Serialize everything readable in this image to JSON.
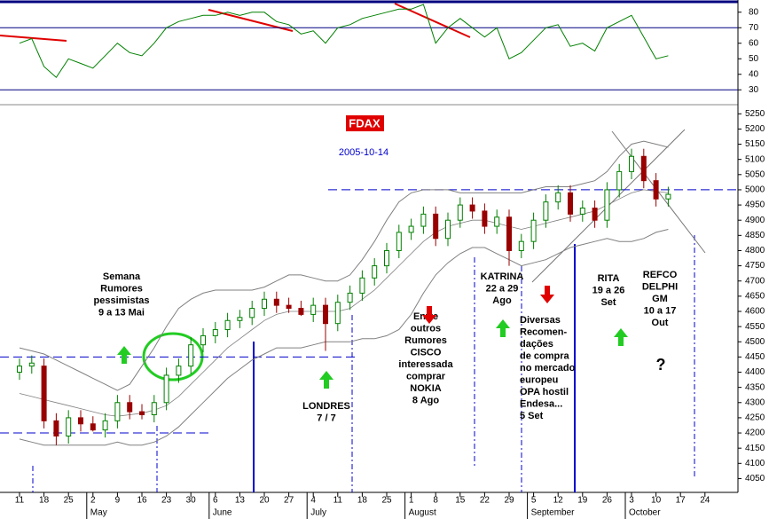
{
  "chart_data": [
    {
      "type": "candlestick",
      "title": "FDAX",
      "subtitle": "2005-10-14",
      "categories": [
        "11",
        null,
        "18",
        null,
        "25",
        null,
        "2",
        null,
        "9",
        null,
        "16",
        null,
        "23",
        null,
        "30",
        null,
        "6",
        null,
        "13",
        null,
        "20",
        null,
        "27",
        null,
        "4",
        null,
        "11",
        null,
        "18",
        null,
        "25",
        null,
        "1",
        null,
        "8",
        null,
        "15",
        null,
        "22",
        null,
        "29",
        null,
        "5",
        null,
        "12",
        null,
        "19",
        null,
        "26",
        null,
        "3",
        null,
        "10",
        null,
        "17",
        null,
        "24",
        null
      ],
      "month_labels": [
        "May",
        "June",
        "July",
        "August",
        "September",
        "October"
      ],
      "open": [
        4400,
        4420,
        4420,
        4240,
        4190,
        4250,
        4230,
        4210,
        4240,
        4300,
        4270,
        4260,
        4300,
        4390,
        4420,
        4490,
        4520,
        4540,
        4570,
        4580,
        4610,
        4640,
        4620,
        4610,
        4590,
        4620,
        4560,
        4630,
        4660,
        4710,
        4750,
        4800,
        4860,
        4880,
        4920,
        4840,
        4900,
        4950,
        4930,
        4880,
        4910,
        4800,
        4830,
        4900,
        4960,
        4990,
        4920,
        4940,
        4900,
        5000,
        5060,
        5110,
        5030,
        4970,
        null,
        null,
        null,
        null
      ],
      "high": [
        4445,
        4455,
        4445,
        4265,
        4275,
        4275,
        4255,
        4265,
        4325,
        4325,
        4295,
        4325,
        4415,
        4445,
        4515,
        4545,
        4565,
        4595,
        4605,
        4635,
        4665,
        4665,
        4645,
        4635,
        4645,
        4645,
        4655,
        4685,
        4735,
        4775,
        4825,
        4885,
        4905,
        4945,
        4945,
        4925,
        4975,
        4975,
        4955,
        4935,
        4935,
        4855,
        4925,
        4985,
        5015,
        5015,
        4965,
        4965,
        5025,
        5085,
        5135,
        5135,
        5055,
        5010,
        null,
        null,
        null,
        null
      ],
      "low": [
        4375,
        4395,
        4215,
        4160,
        4165,
        4205,
        4205,
        4185,
        4215,
        4245,
        4245,
        4235,
        4275,
        4365,
        4395,
        4465,
        4495,
        4515,
        4545,
        4555,
        4585,
        4595,
        4595,
        4585,
        4565,
        4470,
        4535,
        4605,
        4635,
        4685,
        4725,
        4775,
        4835,
        4855,
        4815,
        4815,
        4875,
        4905,
        4855,
        4855,
        4750,
        4775,
        4805,
        4875,
        4935,
        4895,
        4895,
        4875,
        4875,
        4975,
        5035,
        5005,
        4945,
        4945,
        null,
        null,
        null,
        null
      ],
      "close": [
        4420,
        4430,
        4240,
        4190,
        4250,
        4230,
        4210,
        4240,
        4300,
        4270,
        4260,
        4300,
        4390,
        4420,
        4490,
        4520,
        4540,
        4570,
        4580,
        4610,
        4640,
        4620,
        4610,
        4590,
        4620,
        4560,
        4630,
        4660,
        4710,
        4750,
        4800,
        4860,
        4880,
        4920,
        4840,
        4900,
        4950,
        4930,
        4880,
        4910,
        4800,
        4830,
        4900,
        4960,
        4990,
        4920,
        4940,
        4900,
        5000,
        5060,
        5110,
        5030,
        4970,
        4985,
        null,
        null,
        null,
        null
      ],
      "upper": [
        4480,
        4470,
        4460,
        4440,
        4420,
        4400,
        4380,
        4360,
        4340,
        4360,
        4420,
        4480,
        4550,
        4610,
        4640,
        4660,
        4670,
        4670,
        4670,
        4670,
        4680,
        4700,
        4720,
        4720,
        4710,
        4700,
        4700,
        4720,
        4770,
        4830,
        4900,
        4960,
        4990,
        5000,
        5000,
        5000,
        4990,
        4990,
        4990,
        4990,
        4990,
        4990,
        5000,
        5010,
        5010,
        5010,
        5020,
        5030,
        5060,
        5110,
        5150,
        5160,
        5150,
        5140,
        null,
        null,
        null,
        null
      ],
      "middle": [
        4330,
        4320,
        4310,
        4300,
        4290,
        4280,
        4270,
        4260,
        4255,
        4260,
        4265,
        4275,
        4290,
        4320,
        4360,
        4400,
        4440,
        4480,
        4510,
        4540,
        4570,
        4590,
        4600,
        4600,
        4600,
        4600,
        4600,
        4610,
        4640,
        4670,
        4710,
        4750,
        4790,
        4830,
        4860,
        4880,
        4890,
        4900,
        4900,
        4890,
        4880,
        4870,
        4880,
        4890,
        4900,
        4910,
        4920,
        4930,
        4950,
        4970,
        4990,
        5000,
        4995,
        4990,
        null,
        null,
        null,
        null
      ],
      "lower": [
        4180,
        4170,
        4160,
        4160,
        4160,
        4160,
        4160,
        4160,
        4170,
        4160,
        4160,
        4170,
        4190,
        4220,
        4260,
        4300,
        4340,
        4380,
        4410,
        4440,
        4460,
        4480,
        4480,
        4480,
        4490,
        4500,
        4500,
        4500,
        4510,
        4510,
        4520,
        4540,
        4590,
        4660,
        4720,
        4760,
        4790,
        4810,
        4810,
        4790,
        4770,
        4750,
        4760,
        4770,
        4790,
        4810,
        4820,
        4830,
        4840,
        4830,
        4830,
        4840,
        4860,
        4870,
        null,
        null,
        null,
        null
      ],
      "up_color": "#008000",
      "down_color": "#990000",
      "band_color": "#808080",
      "ylim": [
        4025,
        5280
      ],
      "yticks": [
        4050,
        4100,
        4150,
        4200,
        4250,
        4300,
        4350,
        4400,
        4450,
        4500,
        4550,
        4600,
        4650,
        4700,
        4750,
        4800,
        4850,
        4900,
        4950,
        5000,
        5050,
        5100,
        5150,
        5200,
        5250
      ],
      "levels": [
        4450,
        5000,
        4200
      ],
      "level_color": "#0000cc",
      "notes": [
        {
          "lines": [
            "Semana",
            "Rumores",
            "pessimistas",
            "9 a 13 Mai"
          ],
          "color": "#008000"
        },
        {
          "lines": [
            "LONDRES",
            "7 / 7"
          ],
          "color": "#008000"
        },
        {
          "lines": [
            "Entre",
            "outros",
            "Rumores",
            "CISCO",
            "interessada",
            "comprar",
            "NOKIA",
            "8 Ago"
          ],
          "color": "#e00000"
        },
        {
          "lines": [
            "KATRINA",
            "22 a 29",
            "Ago"
          ],
          "color": "#008000"
        },
        {
          "lines": [
            "Diversas",
            "Recomen-",
            "dações",
            "de compra",
            "no mercado",
            "europeu",
            "OPA hostil",
            "Endesa...",
            "5 Set"
          ],
          "color": "#e00000"
        },
        {
          "lines": [
            "RITA",
            "19 a 26",
            "Set"
          ],
          "color": "#008000"
        },
        {
          "lines": [
            "REFCO",
            "DELPHI",
            "GM",
            "10 a 17",
            "Out"
          ],
          "color": "#0000cc"
        },
        {
          "lines": [
            "?"
          ],
          "color": "#0000cc"
        }
      ]
    },
    {
      "type": "line",
      "values": [
        60,
        63,
        45,
        38,
        50,
        47,
        44,
        52,
        60,
        54,
        52,
        60,
        70,
        74,
        76,
        78,
        78,
        80,
        78,
        80,
        80,
        74,
        72,
        66,
        68,
        60,
        70,
        72,
        76,
        78,
        80,
        82,
        82,
        85,
        60,
        70,
        76,
        70,
        64,
        70,
        50,
        54,
        62,
        70,
        72,
        58,
        60,
        55,
        70,
        74,
        78,
        64,
        50,
        52,
        null,
        null,
        null,
        null
      ],
      "color": "#008000",
      "ylim": [
        25,
        85
      ],
      "yticks": [
        30,
        40,
        50,
        60,
        70,
        80
      ],
      "levels": [
        70,
        30
      ],
      "level_color": "#000080"
    }
  ]
}
